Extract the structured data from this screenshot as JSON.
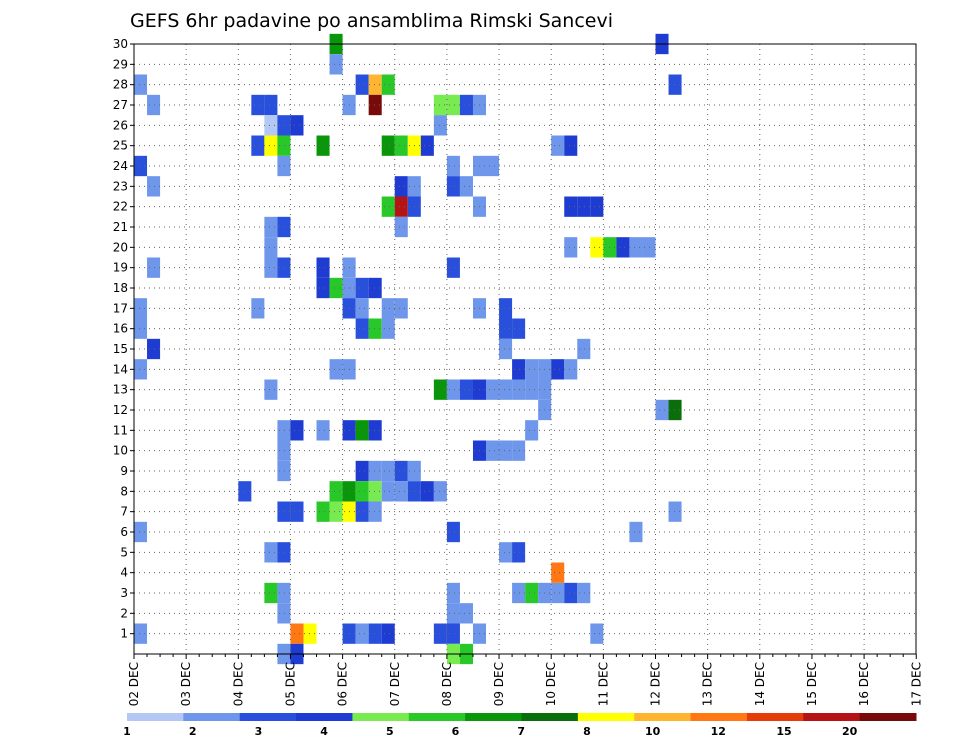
{
  "chart_data": {
    "type": "heatmap",
    "title": "GEFS 6hr padavine po ansamblima Rimski Sancevi",
    "xlabel": "",
    "ylabel": "",
    "x_tick_labels": [
      "02 DEC",
      "03 DEC",
      "04 DEC",
      "05 DEC",
      "06 DEC",
      "07 DEC",
      "08 DEC",
      "09 DEC",
      "10 DEC",
      "11 DEC",
      "12 DEC",
      "13 DEC",
      "14 DEC",
      "15 DEC",
      "16 DEC",
      "17 DEC"
    ],
    "x_step_hours": 6,
    "y_tick_labels": [
      "1",
      "2",
      "3",
      "4",
      "5",
      "6",
      "7",
      "8",
      "9",
      "10",
      "11",
      "12",
      "13",
      "14",
      "15",
      "16",
      "17",
      "18",
      "19",
      "20",
      "21",
      "22",
      "23",
      "24",
      "25",
      "26",
      "27",
      "28",
      "29",
      "30"
    ],
    "y_range": [
      0,
      30
    ],
    "grid": true,
    "legend_placement": "bottom",
    "colorbar": {
      "labels": [
        "1",
        "2",
        "3",
        "4",
        "5",
        "6",
        "7",
        "8",
        "10",
        "12",
        "15",
        "20"
      ],
      "colors": [
        "#b4c8f5",
        "#6e96eb",
        "#2850dc",
        "#1e3cd2",
        "#78eb50",
        "#28c828",
        "#0a960a",
        "#0a6e0a",
        "#ffff00",
        "#ffb432",
        "#ff7814",
        "#e63c0a",
        "#b41414",
        "#780a0a"
      ]
    },
    "cells": [
      [
        0,
        28,
        1
      ],
      [
        1,
        27,
        1
      ],
      [
        0,
        24,
        2
      ],
      [
        1,
        23,
        1
      ],
      [
        1,
        19,
        1
      ],
      [
        0,
        17,
        1
      ],
      [
        0,
        16,
        1
      ],
      [
        1,
        15,
        3
      ],
      [
        0,
        14,
        1
      ],
      [
        0,
        6,
        1
      ],
      [
        0,
        1,
        1
      ],
      [
        9,
        27,
        2
      ],
      [
        10,
        27,
        2
      ],
      [
        9,
        25,
        2
      ],
      [
        10,
        25,
        8
      ],
      [
        11,
        25,
        5
      ],
      [
        10,
        26,
        0
      ],
      [
        11,
        26,
        2
      ],
      [
        12,
        26,
        3
      ],
      [
        11,
        24,
        1
      ],
      [
        10,
        20,
        1
      ],
      [
        11,
        21,
        2
      ],
      [
        10,
        21,
        1
      ],
      [
        10,
        19,
        1
      ],
      [
        11,
        19,
        2
      ],
      [
        9,
        17,
        1
      ],
      [
        10,
        13,
        1
      ],
      [
        11,
        11,
        1
      ],
      [
        12,
        11,
        3
      ],
      [
        14,
        11,
        1
      ],
      [
        11,
        10,
        1
      ],
      [
        11,
        9,
        1
      ],
      [
        8,
        8,
        2
      ],
      [
        11,
        7,
        2
      ],
      [
        12,
        7,
        2
      ],
      [
        10,
        5,
        1
      ],
      [
        11,
        5,
        2
      ],
      [
        10,
        3,
        5
      ],
      [
        11,
        3,
        1
      ],
      [
        11,
        2,
        1
      ],
      [
        12,
        1,
        10
      ],
      [
        13,
        1,
        8
      ],
      [
        11,
        0,
        1
      ],
      [
        12,
        0,
        3
      ],
      [
        15,
        30,
        6
      ],
      [
        15,
        29,
        1
      ],
      [
        17,
        28,
        2
      ],
      [
        18,
        28,
        9
      ],
      [
        19,
        28,
        5
      ],
      [
        16,
        27,
        1
      ],
      [
        18,
        27,
        13
      ],
      [
        14,
        25,
        6
      ],
      [
        19,
        25,
        6
      ],
      [
        20,
        25,
        5
      ],
      [
        21,
        25,
        8
      ],
      [
        22,
        25,
        3
      ],
      [
        19,
        22,
        5
      ],
      [
        20,
        22,
        12
      ],
      [
        21,
        22,
        2
      ],
      [
        20,
        23,
        3
      ],
      [
        21,
        23,
        1
      ],
      [
        20,
        21,
        1
      ],
      [
        14,
        19,
        3
      ],
      [
        14,
        18,
        3
      ],
      [
        15,
        18,
        5
      ],
      [
        16,
        18,
        1
      ],
      [
        17,
        18,
        2
      ],
      [
        18,
        18,
        3
      ],
      [
        16,
        19,
        1
      ],
      [
        16,
        17,
        2
      ],
      [
        17,
        17,
        1
      ],
      [
        17,
        16,
        2
      ],
      [
        18,
        16,
        5
      ],
      [
        19,
        16,
        1
      ],
      [
        19,
        17,
        1
      ],
      [
        20,
        17,
        1
      ],
      [
        15,
        14,
        1
      ],
      [
        16,
        14,
        1
      ],
      [
        16,
        11,
        3
      ],
      [
        17,
        11,
        6
      ],
      [
        18,
        11,
        3
      ],
      [
        17,
        9,
        3
      ],
      [
        18,
        9,
        1
      ],
      [
        19,
        9,
        1
      ],
      [
        20,
        9,
        2
      ],
      [
        21,
        9,
        1
      ],
      [
        15,
        8,
        5
      ],
      [
        16,
        8,
        6
      ],
      [
        17,
        8,
        5
      ],
      [
        18,
        8,
        4
      ],
      [
        19,
        8,
        1
      ],
      [
        20,
        8,
        1
      ],
      [
        21,
        8,
        2
      ],
      [
        22,
        8,
        3
      ],
      [
        23,
        8,
        1
      ],
      [
        14,
        7,
        5
      ],
      [
        15,
        7,
        4
      ],
      [
        16,
        7,
        8
      ],
      [
        17,
        7,
        2
      ],
      [
        18,
        7,
        1
      ],
      [
        16,
        1,
        2
      ],
      [
        17,
        1,
        1
      ],
      [
        18,
        1,
        2
      ],
      [
        19,
        1,
        3
      ],
      [
        23,
        27,
        4
      ],
      [
        24,
        27,
        4
      ],
      [
        25,
        27,
        2
      ],
      [
        26,
        27,
        1
      ],
      [
        23,
        26,
        1
      ],
      [
        24,
        24,
        1
      ],
      [
        26,
        24,
        1
      ],
      [
        27,
        24,
        1
      ],
      [
        24,
        23,
        2
      ],
      [
        25,
        23,
        1
      ],
      [
        26,
        22,
        1
      ],
      [
        24,
        19,
        2
      ],
      [
        26,
        17,
        1
      ],
      [
        28,
        17,
        2
      ],
      [
        28,
        16,
        2
      ],
      [
        29,
        16,
        2
      ],
      [
        28,
        15,
        1
      ],
      [
        29,
        14,
        3
      ],
      [
        30,
        14,
        1
      ],
      [
        31,
        14,
        1
      ],
      [
        32,
        14,
        3
      ],
      [
        33,
        14,
        1
      ],
      [
        23,
        13,
        6
      ],
      [
        24,
        13,
        1
      ],
      [
        25,
        13,
        2
      ],
      [
        26,
        13,
        3
      ],
      [
        27,
        13,
        1
      ],
      [
        28,
        13,
        1
      ],
      [
        29,
        13,
        1
      ],
      [
        30,
        13,
        1
      ],
      [
        31,
        13,
        1
      ],
      [
        31,
        12,
        1
      ],
      [
        30,
        11,
        1
      ],
      [
        26,
        10,
        3
      ],
      [
        27,
        10,
        1
      ],
      [
        28,
        10,
        1
      ],
      [
        29,
        10,
        1
      ],
      [
        24,
        6,
        2
      ],
      [
        28,
        5,
        1
      ],
      [
        29,
        5,
        2
      ],
      [
        24,
        3,
        1
      ],
      [
        29,
        3,
        1
      ],
      [
        30,
        3,
        5
      ],
      [
        31,
        3,
        1
      ],
      [
        32,
        3,
        1
      ],
      [
        33,
        3,
        2
      ],
      [
        34,
        3,
        1
      ],
      [
        32,
        4,
        10
      ],
      [
        24,
        2,
        1
      ],
      [
        25,
        2,
        1
      ],
      [
        23,
        1,
        2
      ],
      [
        24,
        1,
        2
      ],
      [
        26,
        1,
        1
      ],
      [
        35,
        1,
        1
      ],
      [
        24,
        0,
        4
      ],
      [
        25,
        0,
        5
      ],
      [
        32,
        25,
        1
      ],
      [
        33,
        25,
        3
      ],
      [
        33,
        22,
        3
      ],
      [
        34,
        22,
        3
      ],
      [
        35,
        22,
        3
      ],
      [
        33,
        20,
        1
      ],
      [
        35,
        20,
        8
      ],
      [
        36,
        20,
        5
      ],
      [
        37,
        20,
        3
      ],
      [
        38,
        20,
        1
      ],
      [
        39,
        20,
        1
      ],
      [
        34,
        15,
        1
      ],
      [
        40,
        12,
        1
      ],
      [
        41,
        12,
        7
      ],
      [
        41,
        7,
        1
      ],
      [
        38,
        6,
        1
      ],
      [
        41,
        28,
        2
      ],
      [
        40,
        30,
        3
      ]
    ]
  }
}
